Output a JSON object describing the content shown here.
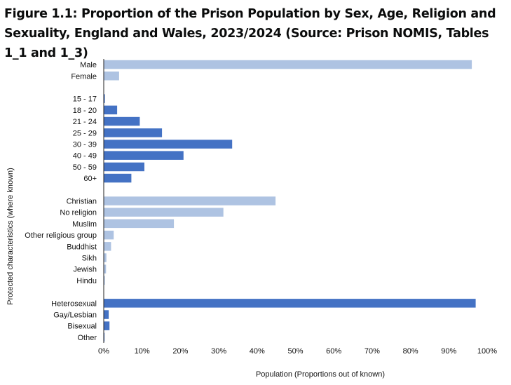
{
  "chart_data": {
    "type": "bar",
    "orientation": "horizontal",
    "title": "Figure 1.1: Proportion of the Prison Population by Sex, Age, Religion and Sexuality, England and Wales, 2023/2024 (Source: Prison NOMIS, Tables 1_1 and 1_3)",
    "xlabel": "Population (Proportions out of known)",
    "ylabel": "Protected characteristics (where known)",
    "xlim": [
      0,
      100
    ],
    "xticks": [
      "0%",
      "10%",
      "20%",
      "30%",
      "40%",
      "50%",
      "60%",
      "70%",
      "80%",
      "90%",
      "100%"
    ],
    "grid": false,
    "groups": [
      {
        "name": "Sex",
        "color": "#aec3e2",
        "categories": [
          "Male",
          "Female"
        ],
        "values": [
          96.0,
          4.0
        ]
      },
      {
        "name": "Age",
        "color": "#4472c4",
        "categories": [
          "15 - 17",
          "18 - 20",
          "21 - 24",
          "25 - 29",
          "30 - 39",
          "40 - 49",
          "50 - 59",
          "60+"
        ],
        "values": [
          0.3,
          3.5,
          9.4,
          15.2,
          33.5,
          20.8,
          10.6,
          7.2
        ]
      },
      {
        "name": "Religion",
        "color": "#aec3e2",
        "categories": [
          "Christian",
          "No religion",
          "Muslim",
          "Other religious group",
          "Buddhist",
          "Sikh",
          "Jewish",
          "Hindu"
        ],
        "values": [
          44.8,
          31.2,
          18.3,
          2.6,
          1.9,
          0.7,
          0.6,
          0.3
        ]
      },
      {
        "name": "Sexuality",
        "color": "#4472c4",
        "categories": [
          "Heterosexual",
          "Gay/Lesbian",
          "Bisexual",
          "Other"
        ],
        "values": [
          97.0,
          1.3,
          1.5,
          0.2
        ]
      }
    ]
  }
}
